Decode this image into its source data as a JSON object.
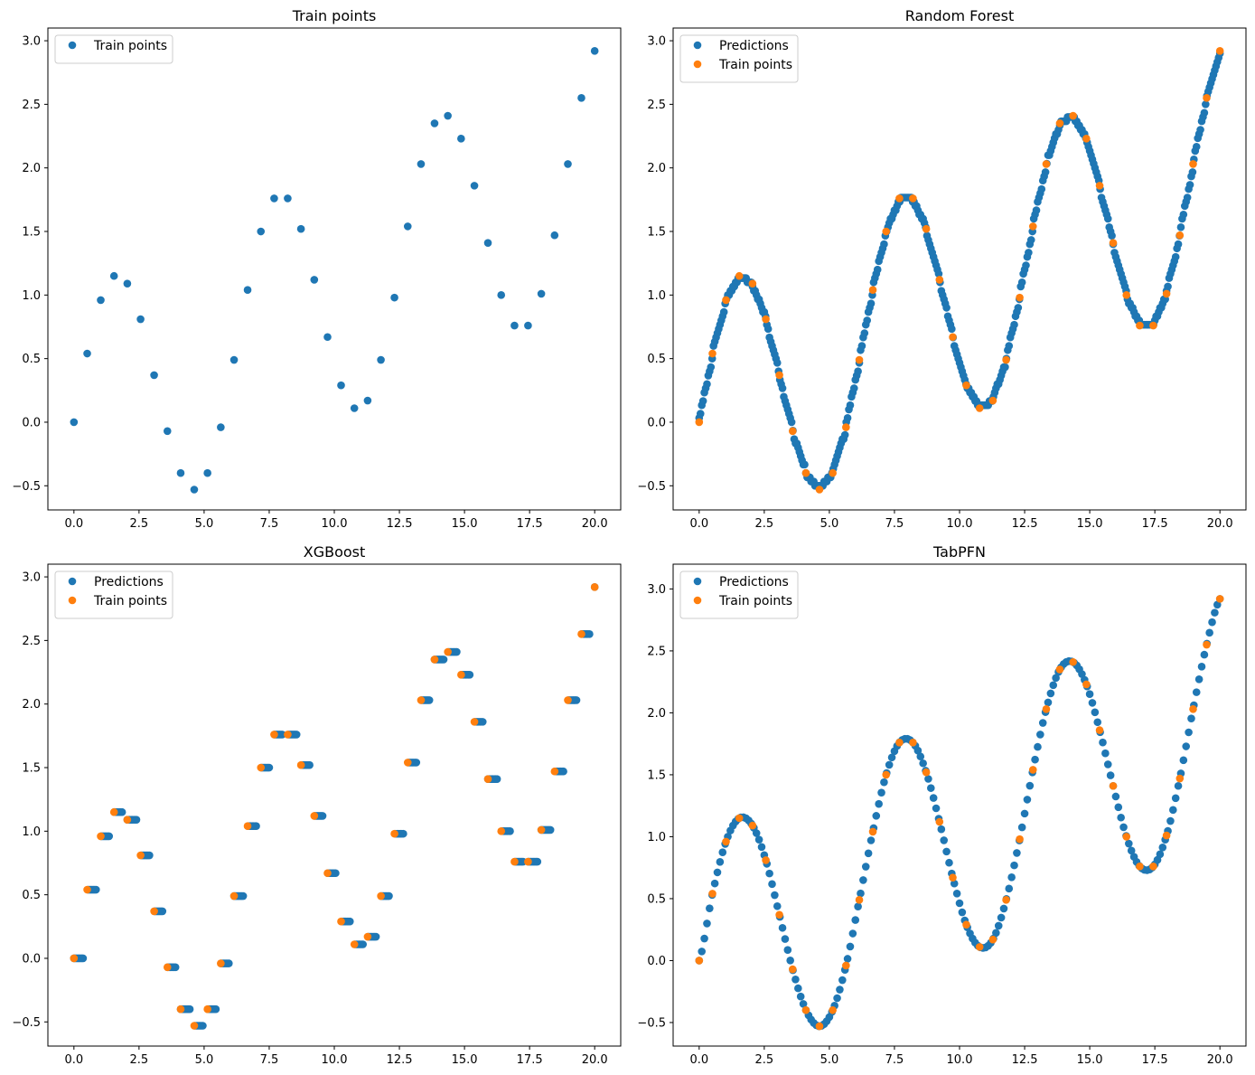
{
  "chart_data": [
    {
      "type": "scatter",
      "title": "Train points",
      "xlim": [
        -1.0,
        21.0
      ],
      "ylim": [
        -0.69,
        3.1
      ],
      "x_ticks": [
        0.0,
        2.5,
        5.0,
        7.5,
        10.0,
        12.5,
        15.0,
        17.5,
        20.0
      ],
      "x_tick_labels": [
        "0.0",
        "2.5",
        "5.0",
        "7.5",
        "10.0",
        "12.5",
        "15.0",
        "17.5",
        "20.0"
      ],
      "y_ticks": [
        -0.5,
        0.0,
        0.5,
        1.0,
        1.5,
        2.0,
        2.5,
        3.0
      ],
      "y_tick_labels": [
        "−0.5",
        "0.0",
        "0.5",
        "1.0",
        "1.5",
        "2.0",
        "2.5",
        "3.0"
      ],
      "legend_position": "upper-left",
      "series": [
        {
          "name": "Train points",
          "color": "#1f77b4",
          "style": "train"
        }
      ]
    },
    {
      "type": "scatter",
      "title": "Random Forest",
      "xlim": [
        -1.0,
        21.0
      ],
      "ylim": [
        -0.69,
        3.1
      ],
      "x_ticks": [
        0.0,
        2.5,
        5.0,
        7.5,
        10.0,
        12.5,
        15.0,
        17.5,
        20.0
      ],
      "x_tick_labels": [
        "0.0",
        "2.5",
        "5.0",
        "7.5",
        "10.0",
        "12.5",
        "15.0",
        "17.5",
        "20.0"
      ],
      "y_ticks": [
        -0.5,
        0.0,
        0.5,
        1.0,
        1.5,
        2.0,
        2.5,
        3.0
      ],
      "y_tick_labels": [
        "−0.5",
        "0.0",
        "0.5",
        "1.0",
        "1.5",
        "2.0",
        "2.5",
        "3.0"
      ],
      "legend_position": "upper-left",
      "series": [
        {
          "name": "Predictions",
          "color": "#1f77b4",
          "style": "rf"
        },
        {
          "name": "Train points",
          "color": "#ff7f0e",
          "style": "train"
        }
      ]
    },
    {
      "type": "scatter",
      "title": "XGBoost",
      "xlim": [
        -1.0,
        21.0
      ],
      "ylim": [
        -0.69,
        3.1
      ],
      "x_ticks": [
        0.0,
        2.5,
        5.0,
        7.5,
        10.0,
        12.5,
        15.0,
        17.5,
        20.0
      ],
      "x_tick_labels": [
        "0.0",
        "2.5",
        "5.0",
        "7.5",
        "10.0",
        "12.5",
        "15.0",
        "17.5",
        "20.0"
      ],
      "y_ticks": [
        -0.5,
        0.0,
        0.5,
        1.0,
        1.5,
        2.0,
        2.5,
        3.0
      ],
      "y_tick_labels": [
        "−0.5",
        "0.0",
        "0.5",
        "1.0",
        "1.5",
        "2.0",
        "2.5",
        "3.0"
      ],
      "legend_position": "upper-left",
      "series": [
        {
          "name": "Predictions",
          "color": "#1f77b4",
          "style": "xgb"
        },
        {
          "name": "Train points",
          "color": "#ff7f0e",
          "style": "train"
        }
      ]
    },
    {
      "type": "scatter",
      "title": "TabPFN",
      "xlim": [
        -1.0,
        21.0
      ],
      "ylim": [
        -0.69,
        3.2
      ],
      "x_ticks": [
        0.0,
        2.5,
        5.0,
        7.5,
        10.0,
        12.5,
        15.0,
        17.5,
        20.0
      ],
      "x_tick_labels": [
        "0.0",
        "2.5",
        "5.0",
        "7.5",
        "10.0",
        "12.5",
        "15.0",
        "17.5",
        "20.0"
      ],
      "y_ticks": [
        -0.5,
        0.0,
        0.5,
        1.0,
        1.5,
        2.0,
        2.5,
        3.0
      ],
      "y_tick_labels": [
        "−0.5",
        "0.0",
        "0.5",
        "1.0",
        "1.5",
        "2.0",
        "2.5",
        "3.0"
      ],
      "legend_position": "upper-left",
      "series": [
        {
          "name": "Predictions",
          "color": "#1f77b4",
          "style": "tabpfn"
        },
        {
          "name": "Train points",
          "color": "#ff7f0e",
          "style": "train"
        }
      ]
    }
  ],
  "train_points": {
    "x": [
      0.0,
      0.51,
      1.03,
      1.54,
      2.05,
      2.56,
      3.08,
      3.59,
      4.1,
      4.62,
      5.13,
      5.64,
      6.15,
      6.67,
      7.18,
      7.69,
      8.21,
      8.72,
      9.23,
      9.74,
      10.26,
      10.77,
      11.28,
      11.79,
      12.31,
      12.82,
      13.33,
      13.85,
      14.36,
      14.87,
      15.38,
      15.9,
      16.41,
      16.92,
      17.44,
      17.95,
      18.46,
      18.97,
      19.49,
      20.0
    ],
    "y": [
      0.0,
      0.54,
      0.96,
      1.15,
      1.09,
      0.81,
      0.37,
      -0.07,
      -0.4,
      -0.53,
      -0.4,
      -0.04,
      0.49,
      1.04,
      1.5,
      1.76,
      1.76,
      1.52,
      1.12,
      0.67,
      0.29,
      0.11,
      0.17,
      0.49,
      0.98,
      1.54,
      2.03,
      2.35,
      2.41,
      2.23,
      1.86,
      1.41,
      1.0,
      0.76,
      0.76,
      1.01,
      1.47,
      2.03,
      2.55,
      2.92
    ]
  }
}
